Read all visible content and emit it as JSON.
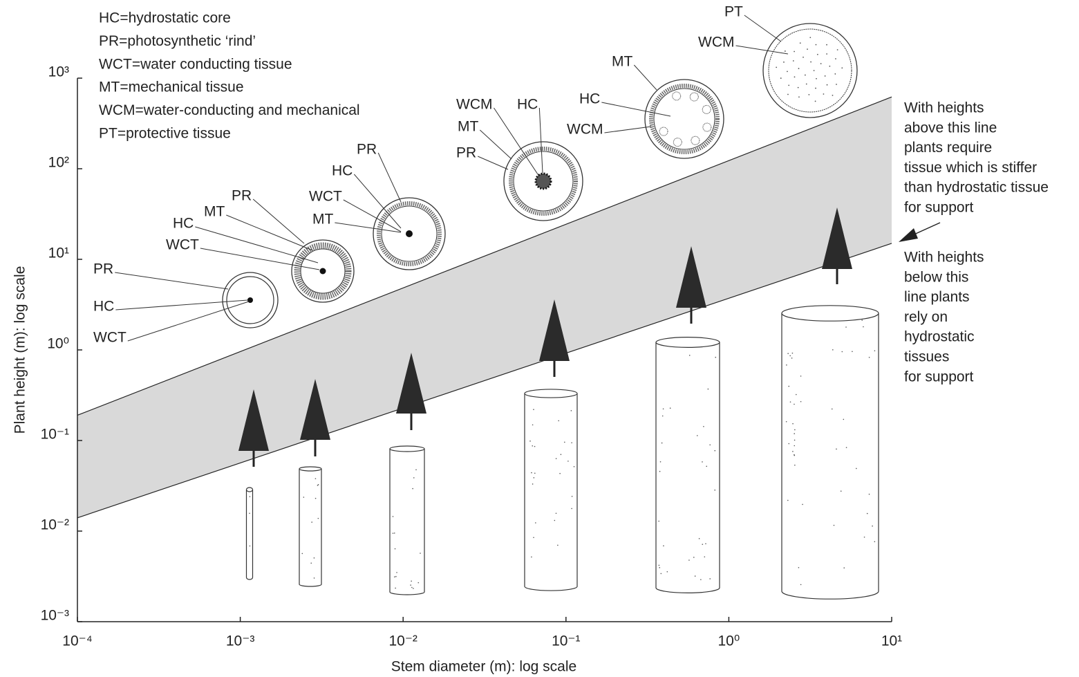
{
  "chart_data": {
    "type": "band",
    "xlabel": "Stem diameter (m): log scale",
    "ylabel": "Plant height (m): log scale",
    "log_x": true,
    "log_y": true,
    "xlim": [
      0.0001,
      10
    ],
    "ylim": [
      0.001,
      1000
    ],
    "xticks": [
      {
        "value": 0.0001,
        "label": "10⁻⁴"
      },
      {
        "value": 0.001,
        "label": "10⁻³"
      },
      {
        "value": 0.01,
        "label": "10⁻²"
      },
      {
        "value": 0.1,
        "label": "10⁻¹"
      },
      {
        "value": 1,
        "label": "10⁰"
      },
      {
        "value": 10,
        "label": "10¹"
      }
    ],
    "yticks": [
      {
        "value": 0.001,
        "label": "10⁻³"
      },
      {
        "value": 0.01,
        "label": "10⁻²"
      },
      {
        "value": 0.1,
        "label": "10⁻¹"
      },
      {
        "value": 1,
        "label": "10⁰"
      },
      {
        "value": 10,
        "label": "10¹"
      },
      {
        "value": 100,
        "label": "10²"
      },
      {
        "value": 1000,
        "label": "10³"
      }
    ],
    "band": {
      "x": [
        0.0001,
        10
      ],
      "lower": [
        0.014,
        15
      ],
      "upper": [
        0.19,
        620
      ],
      "color": "#d9d9d9"
    },
    "key": [
      "HC=hydrostatic core",
      "PR=photosynthetic ‘rind’",
      "WCT=water conducting tissue",
      "MT=mechanical tissue",
      "WCM=water-conducting and mechanical",
      "PT=protective tissue"
    ],
    "annotation_above": [
      "With heights",
      "above this line",
      "plants require",
      "tissue which is stiffer",
      "than hydrostatic tissue",
      "for support"
    ],
    "annotation_below": [
      "With heights",
      "below this",
      "line plants",
      "rely on",
      "hydrostatic",
      "tissues",
      "for support"
    ],
    "diagram_labels": [
      [
        "PR",
        "HC",
        "WCT"
      ],
      [
        "HC",
        "MT",
        "PR",
        "WCT"
      ],
      [
        "PR",
        "HC",
        "WCT",
        "MT"
      ],
      [
        "WCM",
        "HC",
        "MT",
        "PR"
      ],
      [
        "MT",
        "HC",
        "WCM"
      ],
      [
        "PT",
        "WCM"
      ]
    ]
  }
}
